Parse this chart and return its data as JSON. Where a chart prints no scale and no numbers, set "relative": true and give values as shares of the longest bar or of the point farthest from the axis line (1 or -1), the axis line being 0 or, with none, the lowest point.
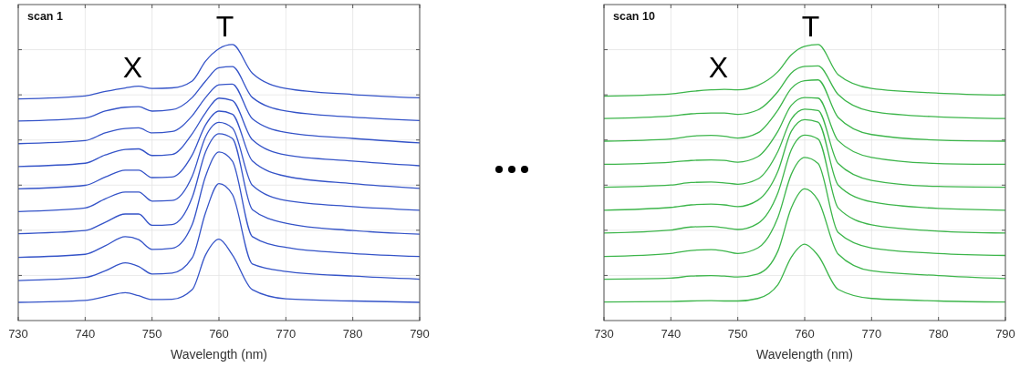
{
  "chart_data": [
    {
      "type": "line",
      "title": "scan 1",
      "xlabel": "Wavelength (nm)",
      "relative": true,
      "xlim": [
        730,
        790
      ],
      "xticks": [
        730,
        740,
        750,
        760,
        770,
        780,
        790
      ],
      "grid": true,
      "marker": "none",
      "line_style": "solid",
      "x": [
        730,
        740,
        743,
        746,
        748,
        750,
        753,
        756,
        758,
        760,
        762,
        765,
        770,
        780,
        790
      ],
      "annotations": [
        "X",
        "T"
      ],
      "series": [
        {
          "color": "#3453c8",
          "values": [
            0.066,
            0.073,
            0.087,
            0.101,
            0.09,
            0.076,
            0.077,
            0.112,
            0.238,
            0.295,
            0.238,
            0.112,
            0.079,
            0.071,
            0.066
          ]
        },
        {
          "color": "#3453c8",
          "values": [
            0.145,
            0.156,
            0.18,
            0.209,
            0.196,
            0.169,
            0.172,
            0.227,
            0.391,
            0.496,
            0.457,
            0.205,
            0.178,
            0.161,
            0.15
          ]
        },
        {
          "color": "#3453c8",
          "values": [
            0.229,
            0.24,
            0.271,
            0.304,
            0.293,
            0.258,
            0.262,
            0.348,
            0.523,
            0.611,
            0.578,
            0.304,
            0.265,
            0.243,
            0.232
          ]
        },
        {
          "color": "#3453c8",
          "values": [
            0.315,
            0.326,
            0.356,
            0.386,
            0.386,
            0.345,
            0.348,
            0.446,
            0.611,
            0.677,
            0.66,
            0.402,
            0.353,
            0.326,
            0.313
          ]
        },
        {
          "color": "#3453c8",
          "values": [
            0.395,
            0.408,
            0.441,
            0.466,
            0.466,
            0.433,
            0.435,
            0.523,
            0.666,
            0.718,
            0.698,
            0.49,
            0.435,
            0.413,
            0.4
          ]
        },
        {
          "color": "#3453c8",
          "values": [
            0.477,
            0.49,
            0.52,
            0.545,
            0.545,
            0.518,
            0.52,
            0.6,
            0.709,
            0.759,
            0.748,
            0.578,
            0.523,
            0.496,
            0.479
          ]
        },
        {
          "color": "#3453c8",
          "values": [
            0.558,
            0.57,
            0.6,
            0.62,
            0.622,
            0.598,
            0.602,
            0.677,
            0.753,
            0.806,
            0.797,
            0.655,
            0.6,
            0.578,
            0.561
          ]
        },
        {
          "color": "#3453c8",
          "values": [
            0.641,
            0.652,
            0.68,
            0.696,
            0.698,
            0.68,
            0.685,
            0.742,
            0.808,
            0.854,
            0.857,
            0.731,
            0.682,
            0.66,
            0.644
          ]
        },
        {
          "color": "#3453c8",
          "values": [
            0.723,
            0.734,
            0.759,
            0.773,
            0.775,
            0.759,
            0.764,
            0.808,
            0.868,
            0.916,
            0.92,
            0.808,
            0.759,
            0.737,
            0.725
          ]
        },
        {
          "color": "#3453c8",
          "values": [
            0.803,
            0.814,
            0.83,
            0.843,
            0.849,
            0.841,
            0.843,
            0.868,
            0.94,
            0.985,
            1.0,
            0.896,
            0.841,
            0.819,
            0.807
          ]
        }
      ]
    },
    {
      "type": "line",
      "title": "scan 10",
      "xlabel": "Wavelength (nm)",
      "relative": true,
      "xlim": [
        730,
        790
      ],
      "xticks": [
        730,
        740,
        750,
        760,
        770,
        780,
        790
      ],
      "grid": true,
      "marker": "none",
      "line_style": "solid",
      "x": [
        730,
        740,
        743,
        746,
        748,
        750,
        753,
        756,
        758,
        760,
        762,
        765,
        770,
        780,
        790
      ],
      "annotations": [
        "X",
        "T"
      ],
      "series": [
        {
          "color": "#3cb54a",
          "values": [
            0.067,
            0.069,
            0.071,
            0.072,
            0.071,
            0.071,
            0.08,
            0.13,
            0.23,
            0.277,
            0.236,
            0.113,
            0.08,
            0.071,
            0.067
          ]
        },
        {
          "color": "#3cb54a",
          "values": [
            0.15,
            0.154,
            0.161,
            0.163,
            0.161,
            0.158,
            0.169,
            0.252,
            0.408,
            0.477,
            0.436,
            0.241,
            0.18,
            0.163,
            0.152
          ]
        },
        {
          "color": "#3cb54a",
          "values": [
            0.232,
            0.243,
            0.254,
            0.257,
            0.252,
            0.243,
            0.263,
            0.374,
            0.53,
            0.591,
            0.569,
            0.319,
            0.263,
            0.243,
            0.236
          ]
        },
        {
          "color": "#3cb54a",
          "values": [
            0.317,
            0.328,
            0.339,
            0.341,
            0.336,
            0.33,
            0.352,
            0.463,
            0.619,
            0.672,
            0.658,
            0.408,
            0.347,
            0.324,
            0.317
          ]
        },
        {
          "color": "#3cb54a",
          "values": [
            0.4,
            0.41,
            0.419,
            0.422,
            0.419,
            0.413,
            0.436,
            0.541,
            0.686,
            0.728,
            0.719,
            0.491,
            0.43,
            0.406,
            0.4
          ]
        },
        {
          "color": "#3cb54a",
          "values": [
            0.483,
            0.491,
            0.5,
            0.502,
            0.499,
            0.494,
            0.513,
            0.613,
            0.73,
            0.766,
            0.761,
            0.569,
            0.508,
            0.486,
            0.483
          ]
        },
        {
          "color": "#3cb54a",
          "values": [
            0.566,
            0.574,
            0.58,
            0.582,
            0.58,
            0.574,
            0.594,
            0.686,
            0.78,
            0.808,
            0.806,
            0.652,
            0.591,
            0.569,
            0.566
          ]
        },
        {
          "color": "#3cb54a",
          "values": [
            0.65,
            0.658,
            0.668,
            0.671,
            0.668,
            0.661,
            0.68,
            0.763,
            0.841,
            0.869,
            0.872,
            0.736,
            0.674,
            0.654,
            0.65
          ]
        },
        {
          "color": "#3cb54a",
          "values": [
            0.732,
            0.741,
            0.749,
            0.752,
            0.752,
            0.747,
            0.763,
            0.83,
            0.897,
            0.921,
            0.923,
            0.819,
            0.758,
            0.738,
            0.732
          ]
        },
        {
          "color": "#3cb54a",
          "values": [
            0.813,
            0.821,
            0.83,
            0.836,
            0.838,
            0.836,
            0.852,
            0.902,
            0.963,
            0.994,
            1.0,
            0.891,
            0.841,
            0.824,
            0.817
          ]
        }
      ]
    }
  ]
}
